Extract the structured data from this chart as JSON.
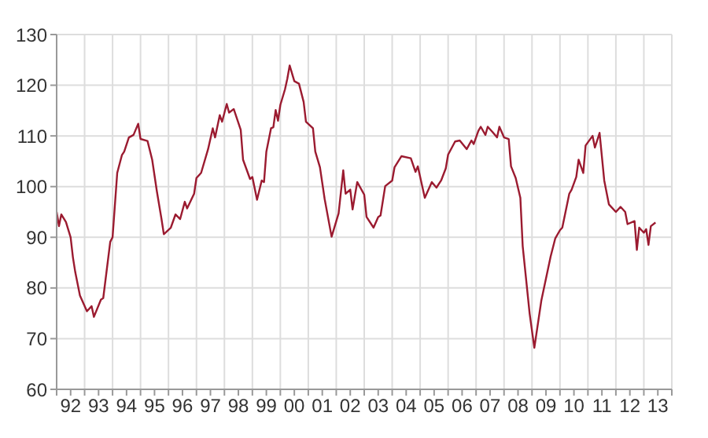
{
  "chart_data": {
    "type": "line",
    "color": "#9b1b30",
    "grid": true,
    "marker": "none",
    "line_style": "solid",
    "xlim": [
      "1992",
      "2014"
    ],
    "ylim": [
      60,
      130
    ],
    "yticks": [
      60,
      70,
      80,
      90,
      100,
      110,
      120,
      130
    ],
    "xticks": [
      {
        "value": "1992",
        "label": null
      },
      {
        "value": "1992-07",
        "label": "92"
      },
      {
        "value": "1993",
        "label": null
      },
      {
        "value": "1993-07",
        "label": "93"
      },
      {
        "value": "1994",
        "label": null
      },
      {
        "value": "1994-07",
        "label": "94"
      },
      {
        "value": "1995",
        "label": null
      },
      {
        "value": "1995-07",
        "label": "95"
      },
      {
        "value": "1996",
        "label": null
      },
      {
        "value": "1996-07",
        "label": "96"
      },
      {
        "value": "1997",
        "label": null
      },
      {
        "value": "1997-07",
        "label": "97"
      },
      {
        "value": "1998",
        "label": null
      },
      {
        "value": "1998-07",
        "label": "98"
      },
      {
        "value": "1999",
        "label": null
      },
      {
        "value": "1999-07",
        "label": "99"
      },
      {
        "value": "2000",
        "label": null
      },
      {
        "value": "2000-07",
        "label": "00"
      },
      {
        "value": "2001",
        "label": null
      },
      {
        "value": "2001-07",
        "label": "01"
      },
      {
        "value": "2002",
        "label": null
      },
      {
        "value": "2002-07",
        "label": "02"
      },
      {
        "value": "2003",
        "label": null
      },
      {
        "value": "2003-07",
        "label": "03"
      },
      {
        "value": "2004",
        "label": null
      },
      {
        "value": "2004-07",
        "label": "04"
      },
      {
        "value": "2005",
        "label": null
      },
      {
        "value": "2005-07",
        "label": "05"
      },
      {
        "value": "2006",
        "label": null
      },
      {
        "value": "2006-07",
        "label": "06"
      },
      {
        "value": "2007",
        "label": null
      },
      {
        "value": "2007-07",
        "label": "07"
      },
      {
        "value": "2008",
        "label": null
      },
      {
        "value": "2008-07",
        "label": "08"
      },
      {
        "value": "2009",
        "label": null
      },
      {
        "value": "2009-07",
        "label": "09"
      },
      {
        "value": "2010",
        "label": null
      },
      {
        "value": "2010-07",
        "label": "10"
      },
      {
        "value": "2011",
        "label": null
      },
      {
        "value": "2011-07",
        "label": "11"
      },
      {
        "value": "2012",
        "label": null
      },
      {
        "value": "2012-07",
        "label": "12"
      },
      {
        "value": "2013",
        "label": null
      },
      {
        "value": "2013-07",
        "label": "13"
      },
      {
        "value": "2014",
        "label": null
      }
    ],
    "x": [
      "1992-01",
      "1992-02",
      "1992-03",
      "1992-05",
      "1992-07",
      "1992-08",
      "1992-09",
      "1992-11",
      "1993-02",
      "1993-04",
      "1993-05",
      "1993-08",
      "1993-09",
      "1993-12",
      "1994-01",
      "1994-03",
      "1994-05",
      "1994-06",
      "1994-08",
      "1994-10",
      "1994-12",
      "1995-01",
      "1995-04",
      "1995-06",
      "1995-08",
      "1995-10",
      "1995-11",
      "1996-02",
      "1996-04",
      "1996-06",
      "1996-08",
      "1996-09",
      "1996-12",
      "1997-01",
      "1997-03",
      "1997-06",
      "1997-08",
      "1997-09",
      "1997-11",
      "1997-12",
      "1998-02",
      "1998-03",
      "1998-05",
      "1998-08",
      "1998-09",
      "1998-12",
      "1999-01",
      "1999-03",
      "1999-05",
      "1999-06",
      "1999-07",
      "1999-09",
      "1999-10",
      "1999-11",
      "1999-12",
      "2000-01",
      "2000-03",
      "2000-04",
      "2000-05",
      "2000-07",
      "2000-09",
      "2000-11",
      "2000-12",
      "2001-03",
      "2001-04",
      "2001-06",
      "2001-08",
      "2001-11",
      "2002-02",
      "2002-04",
      "2002-05",
      "2002-07",
      "2002-08",
      "2002-10",
      "2003-01",
      "2003-02",
      "2003-05",
      "2003-07",
      "2003-08",
      "2003-10",
      "2004-01",
      "2004-02",
      "2004-05",
      "2004-09",
      "2004-11",
      "2004-12",
      "2005-03",
      "2005-06",
      "2005-08",
      "2005-10",
      "2005-12",
      "2006-01",
      "2006-04",
      "2006-06",
      "2006-09",
      "2006-11",
      "2006-12",
      "2007-02",
      "2007-03",
      "2007-05",
      "2007-06",
      "2007-08",
      "2007-10",
      "2007-11",
      "2008-01",
      "2008-03",
      "2008-04",
      "2008-06",
      "2008-08",
      "2008-09",
      "2008-12",
      "2009-02",
      "2009-05",
      "2009-09",
      "2009-11",
      "2010-01",
      "2010-02",
      "2010-05",
      "2010-06",
      "2010-08",
      "2010-09",
      "2010-11",
      "2010-12",
      "2011-03",
      "2011-04",
      "2011-06",
      "2011-08",
      "2011-10",
      "2012-01",
      "2012-03",
      "2012-05",
      "2012-06",
      "2012-09",
      "2012-10",
      "2012-11",
      "2013-01",
      "2013-02",
      "2013-03",
      "2013-04",
      "2013-06"
    ],
    "values": [
      95,
      92.2,
      94.5,
      93,
      90,
      86,
      83.1,
      78.5,
      75.4,
      76.4,
      74.3,
      77.7,
      78,
      89.1,
      90,
      102.7,
      106.2,
      106.9,
      109.7,
      110.2,
      112.4,
      109.4,
      109,
      105.3,
      99.1,
      93.6,
      90.6,
      91.9,
      94.5,
      93.6,
      97,
      95.7,
      98.6,
      101.7,
      102.7,
      107.4,
      111.5,
      109.7,
      114.1,
      112.8,
      116.3,
      114.6,
      115.3,
      111.2,
      105.3,
      101.5,
      101.9,
      97.4,
      101.2,
      100.9,
      106.9,
      111.5,
      111.7,
      115.1,
      113,
      116.1,
      119.2,
      121.3,
      123.9,
      120.8,
      120.3,
      116.7,
      112.8,
      111.5,
      106.9,
      103.8,
      97.6,
      90.1,
      94.7,
      103.2,
      98.6,
      99.4,
      95.5,
      100.9,
      98.4,
      94,
      91.9,
      94,
      94.3,
      100.1,
      101.2,
      103.8,
      106,
      105.6,
      102.9,
      104,
      97.8,
      100.9,
      99.8,
      101.2,
      103.6,
      106.3,
      108.9,
      109.1,
      107.4,
      109.1,
      108.4,
      111,
      111.8,
      110.2,
      111.8,
      110.8,
      109.7,
      111.8,
      109.7,
      109.4,
      104,
      101.7,
      97.8,
      88.3,
      74.9,
      68.2,
      77.5,
      86.2,
      89.8,
      91.4,
      91.9,
      98.6,
      99.4,
      101.9,
      105.3,
      102.7,
      108.1,
      110,
      107.7,
      110.6,
      101.2,
      96.5,
      95,
      96,
      95,
      92.6,
      93.2,
      87.5,
      91.9,
      90.9,
      91.6,
      88.5,
      92.2,
      92.9
    ]
  }
}
